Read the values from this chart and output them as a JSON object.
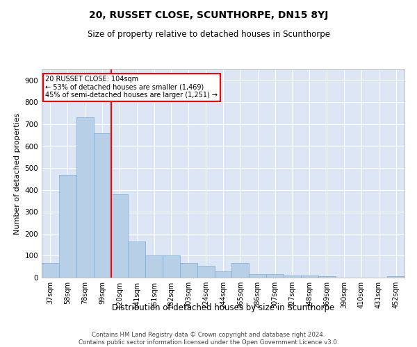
{
  "title": "20, RUSSET CLOSE, SCUNTHORPE, DN15 8YJ",
  "subtitle": "Size of property relative to detached houses in Scunthorpe",
  "xlabel": "Distribution of detached houses by size in Scunthorpe",
  "ylabel": "Number of detached properties",
  "categories": [
    "37sqm",
    "58sqm",
    "78sqm",
    "99sqm",
    "120sqm",
    "141sqm",
    "161sqm",
    "182sqm",
    "203sqm",
    "224sqm",
    "244sqm",
    "265sqm",
    "286sqm",
    "307sqm",
    "327sqm",
    "348sqm",
    "369sqm",
    "390sqm",
    "410sqm",
    "431sqm",
    "452sqm"
  ],
  "values": [
    65,
    470,
    730,
    660,
    380,
    165,
    100,
    100,
    65,
    55,
    30,
    65,
    15,
    15,
    10,
    8,
    5,
    0,
    0,
    0,
    5
  ],
  "bar_color": "#b8cfe8",
  "bar_edge_color": "#7aadd4",
  "background_color": "#dce6f5",
  "grid_color": "#ffffff",
  "red_line_x": 3.53,
  "annotation_line1": "20 RUSSET CLOSE: 104sqm",
  "annotation_line2": "← 53% of detached houses are smaller (1,469)",
  "annotation_line3": "45% of semi-detached houses are larger (1,251) →",
  "ylim": [
    0,
    950
  ],
  "yticks": [
    0,
    100,
    200,
    300,
    400,
    500,
    600,
    700,
    800,
    900
  ],
  "footer_line1": "Contains HM Land Registry data © Crown copyright and database right 2024.",
  "footer_line2": "Contains public sector information licensed under the Open Government Licence v3.0."
}
